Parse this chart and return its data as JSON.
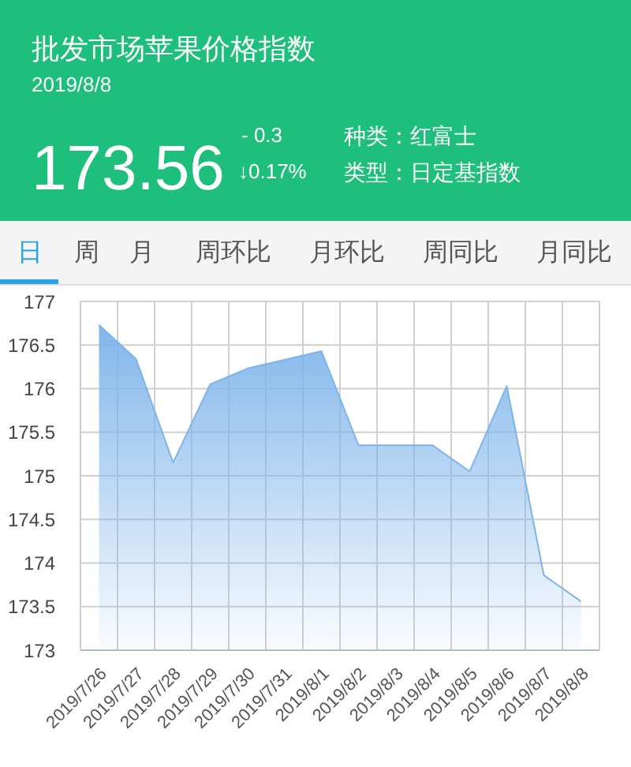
{
  "chart_data": {
    "type": "area",
    "title": "批发市场苹果价格指数",
    "subtitle": "2019/8/8",
    "categories": [
      "2019/7/26",
      "2019/7/27",
      "2019/7/28",
      "2019/7/29",
      "2019/7/30",
      "2019/7/31",
      "2019/8/1",
      "2019/8/2",
      "2019/8/3",
      "2019/8/4",
      "2019/8/5",
      "2019/8/6",
      "2019/8/7",
      "2019/8/8"
    ],
    "values": [
      176.73,
      176.34,
      175.15,
      176.05,
      176.23,
      176.33,
      176.43,
      175.35,
      175.35,
      175.35,
      175.05,
      176.03,
      173.86,
      173.56
    ],
    "color": "#7db4ea",
    "ylim": [
      173,
      177
    ],
    "yticks": [
      173,
      173.5,
      174,
      174.5,
      175,
      175.5,
      176,
      176.5,
      177
    ],
    "grid": true,
    "annotations": [
      "173.56",
      "- 0.3",
      "↓0.17%",
      "种类：红富士",
      "类型：日定基指数",
      "日",
      "周",
      "月",
      "周环比",
      "月环比",
      "周同比",
      "月同比"
    ]
  }
}
